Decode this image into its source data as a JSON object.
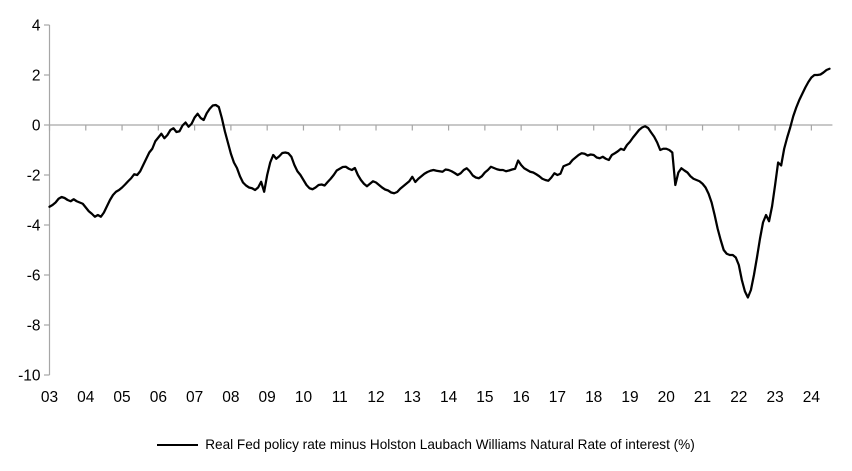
{
  "chart_data": {
    "type": "line",
    "title": "",
    "xlabel": "",
    "ylabel": "",
    "grid": "zero-line-only",
    "legend_position": "bottom-center",
    "background": "#ffffff",
    "axis_color": "#a6a6a6",
    "x_start_year": 2003,
    "x_frequency": "monthly",
    "xlim_years": [
      2003,
      2024.58
    ],
    "ylim": [
      -10,
      4
    ],
    "yticks": [
      4,
      2,
      0,
      -2,
      -4,
      -6,
      -8,
      -10
    ],
    "ytick_labels": [
      "4",
      "2",
      "0",
      "-2",
      "-4",
      "-6",
      "-8",
      "-10"
    ],
    "xtick_labels": [
      "03",
      "04",
      "05",
      "06",
      "07",
      "08",
      "09",
      "10",
      "11",
      "12",
      "13",
      "14",
      "15",
      "16",
      "17",
      "18",
      "19",
      "20",
      "21",
      "22",
      "23",
      "24"
    ],
    "series": [
      {
        "name": "Real Fed policy rate minus Holston Laubach Williams Natural Rate of interest (%)",
        "color": "#000000",
        "stroke_width": 2.25,
        "values": [
          -3.27,
          -3.2,
          -3.1,
          -2.95,
          -2.88,
          -2.92,
          -3.0,
          -3.05,
          -2.97,
          -3.05,
          -3.1,
          -3.15,
          -3.3,
          -3.45,
          -3.55,
          -3.67,
          -3.6,
          -3.67,
          -3.5,
          -3.25,
          -3.0,
          -2.8,
          -2.67,
          -2.6,
          -2.5,
          -2.38,
          -2.25,
          -2.13,
          -1.97,
          -2.0,
          -1.85,
          -1.6,
          -1.35,
          -1.1,
          -0.95,
          -0.65,
          -0.5,
          -0.35,
          -0.53,
          -0.4,
          -0.2,
          -0.13,
          -0.28,
          -0.25,
          -0.02,
          0.1,
          -0.07,
          0.05,
          0.3,
          0.45,
          0.28,
          0.2,
          0.47,
          0.65,
          0.78,
          0.8,
          0.72,
          0.28,
          -0.25,
          -0.7,
          -1.15,
          -1.5,
          -1.72,
          -2.05,
          -2.3,
          -2.42,
          -2.5,
          -2.53,
          -2.6,
          -2.5,
          -2.27,
          -2.67,
          -2.0,
          -1.5,
          -1.2,
          -1.35,
          -1.25,
          -1.12,
          -1.1,
          -1.13,
          -1.27,
          -1.6,
          -1.85,
          -2.0,
          -2.2,
          -2.4,
          -2.53,
          -2.57,
          -2.5,
          -2.4,
          -2.38,
          -2.42,
          -2.28,
          -2.15,
          -2.0,
          -1.82,
          -1.75,
          -1.68,
          -1.67,
          -1.75,
          -1.8,
          -1.72,
          -2.0,
          -2.2,
          -2.35,
          -2.45,
          -2.35,
          -2.25,
          -2.3,
          -2.4,
          -2.5,
          -2.58,
          -2.62,
          -2.7,
          -2.73,
          -2.68,
          -2.55,
          -2.45,
          -2.35,
          -2.25,
          -2.07,
          -2.28,
          -2.15,
          -2.05,
          -1.95,
          -1.88,
          -1.83,
          -1.8,
          -1.83,
          -1.85,
          -1.87,
          -1.78,
          -1.8,
          -1.85,
          -1.92,
          -2.0,
          -1.93,
          -1.8,
          -1.73,
          -1.85,
          -2.02,
          -2.1,
          -2.13,
          -2.05,
          -1.9,
          -1.8,
          -1.67,
          -1.72,
          -1.77,
          -1.8,
          -1.8,
          -1.85,
          -1.82,
          -1.78,
          -1.75,
          -1.42,
          -1.6,
          -1.73,
          -1.8,
          -1.87,
          -1.9,
          -1.97,
          -2.05,
          -2.15,
          -2.2,
          -2.23,
          -2.1,
          -1.93,
          -2.0,
          -1.95,
          -1.65,
          -1.6,
          -1.55,
          -1.4,
          -1.3,
          -1.2,
          -1.13,
          -1.15,
          -1.22,
          -1.18,
          -1.2,
          -1.3,
          -1.33,
          -1.27,
          -1.35,
          -1.4,
          -1.2,
          -1.13,
          -1.05,
          -0.95,
          -1.0,
          -0.8,
          -0.67,
          -0.5,
          -0.35,
          -0.2,
          -0.1,
          -0.05,
          -0.12,
          -0.3,
          -0.47,
          -0.7,
          -1.0,
          -0.95,
          -0.95,
          -1.0,
          -1.1,
          -2.4,
          -1.9,
          -1.73,
          -1.82,
          -1.9,
          -2.05,
          -2.15,
          -2.2,
          -2.25,
          -2.35,
          -2.5,
          -2.75,
          -3.1,
          -3.6,
          -4.15,
          -4.6,
          -5.0,
          -5.15,
          -5.2,
          -5.2,
          -5.3,
          -5.6,
          -6.2,
          -6.65,
          -6.9,
          -6.6,
          -6.0,
          -5.3,
          -4.55,
          -3.9,
          -3.6,
          -3.85,
          -3.25,
          -2.4,
          -1.5,
          -1.62,
          -0.95,
          -0.5,
          -0.1,
          0.35,
          0.7,
          1.0,
          1.25,
          1.5,
          1.72,
          1.9,
          2.0,
          2.0,
          2.02,
          2.1,
          2.2,
          2.25
        ]
      }
    ]
  },
  "legend": {
    "label": "Real Fed policy rate minus Holston Laubach Williams Natural Rate of interest (%)"
  }
}
